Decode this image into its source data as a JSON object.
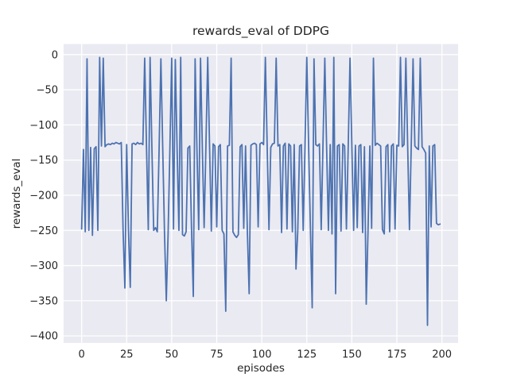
{
  "colors": {
    "figure_background": "#ffffff",
    "axes_background": "#eaeaf2",
    "gridline": "#ffffff",
    "line": "#4c72b0",
    "text": "#262626"
  },
  "chart_data": {
    "type": "line",
    "title": "rewards_eval of DDPG",
    "xlabel": "episodes",
    "ylabel": "rewards_eval",
    "legend": "none",
    "grid": "on",
    "xlim": [
      -10,
      209
    ],
    "ylim": [
      -410,
      15
    ],
    "xticks": [
      0,
      25,
      50,
      75,
      100,
      125,
      150,
      175,
      200
    ],
    "yticks": [
      0,
      -50,
      -100,
      -150,
      -200,
      -250,
      -300,
      -350,
      -400
    ],
    "series_name": "rewards_eval",
    "x_start": 0,
    "x_step": 1,
    "values": [
      -248,
      -135,
      -252,
      -6,
      -250,
      -132,
      -257,
      -134,
      -131,
      -250,
      -4,
      -130,
      -5,
      -131,
      -128,
      -127,
      -128,
      -126,
      -127,
      -125,
      -126,
      -127,
      -125,
      -249,
      -332,
      -128,
      -250,
      -331,
      -127,
      -126,
      -128,
      -125,
      -127,
      -126,
      -128,
      -5,
      -130,
      -249,
      -4,
      -132,
      -250,
      -246,
      -252,
      -135,
      -6,
      -131,
      -253,
      -350,
      -255,
      -133,
      -5,
      -248,
      -7,
      -134,
      -250,
      -4,
      -256,
      -258,
      -252,
      -133,
      -130,
      -247,
      -344,
      -6,
      -133,
      -249,
      -5,
      -132,
      -246,
      -130,
      -4,
      -128,
      -251,
      -127,
      -130,
      -245,
      -131,
      -128,
      -250,
      -255,
      -365,
      -130,
      -129,
      -5,
      -252,
      -257,
      -260,
      -256,
      -131,
      -128,
      -247,
      -130,
      -251,
      -340,
      -129,
      -127,
      -126,
      -128,
      -245,
      -127,
      -125,
      -128,
      -4,
      -130,
      -249,
      -132,
      -127,
      -126,
      -5,
      -130,
      -128,
      -253,
      -130,
      -126,
      -248,
      -127,
      -130,
      -252,
      -128,
      -305,
      -250,
      -130,
      -128,
      -250,
      -131,
      -4,
      -129,
      -246,
      -360,
      -6,
      -128,
      -130,
      -127,
      -249,
      -126,
      -5,
      -131,
      -250,
      -128,
      -255,
      -4,
      -340,
      -130,
      -128,
      -251,
      -127,
      -130,
      -248,
      -131,
      -5,
      -128,
      -250,
      -129,
      -246,
      -130,
      -128,
      -253,
      -131,
      -355,
      -250,
      -130,
      -247,
      -5,
      -129,
      -126,
      -128,
      -130,
      -249,
      -255,
      -131,
      -128,
      -252,
      -130,
      -127,
      -248,
      -129,
      -130,
      -4,
      -131,
      -128,
      -5,
      -130,
      -249,
      -128,
      -6,
      -130,
      -133,
      -135,
      -5,
      -131,
      -135,
      -140,
      -385,
      -130,
      -245,
      -130,
      -128,
      -240,
      -242,
      -241
    ]
  }
}
